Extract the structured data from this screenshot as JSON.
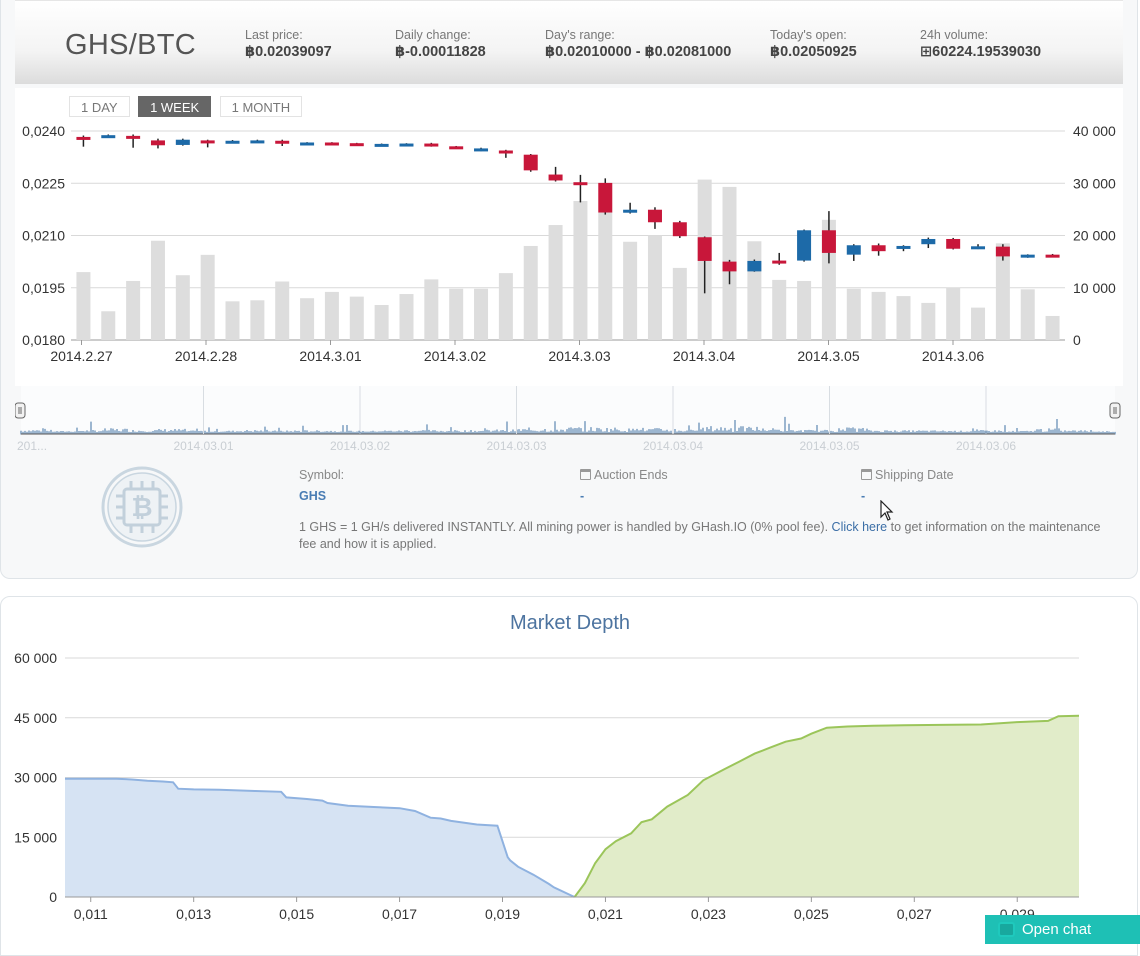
{
  "ticker": {
    "pair": "GHS/BTC",
    "last_price_label": "Last price:",
    "last_price": "฿0.02039097",
    "daily_change_label": "Daily change:",
    "daily_change": "฿-0.00011828",
    "days_range_label": "Day's range:",
    "days_range": "฿0.02010000 - ฿0.02081000",
    "todays_open_label": "Today's open:",
    "todays_open": "฿0.02050925",
    "volume_label": "24h volume:",
    "volume": "⊞60224.19539030"
  },
  "range_buttons": [
    {
      "label": "1 DAY",
      "active": false
    },
    {
      "label": "1 WEEK",
      "active": true
    },
    {
      "label": "1 MONTH",
      "active": false
    }
  ],
  "colors": {
    "up": "#1d6aa8",
    "down": "#c8173a",
    "volume_bar": "#dddddd",
    "bid_fill": "#d6e3f3",
    "bid_line": "#8fb2e0",
    "ask_fill": "#e1ecc9",
    "ask_line": "#9bc55a",
    "chat": "#1ec0b5",
    "link": "#3b6ea6"
  },
  "info": {
    "symbol_label": "Symbol:",
    "symbol": "GHS",
    "auction_label": "Auction Ends",
    "auction_value": "-",
    "shipping_label": "Shipping Date",
    "shipping_value": "-",
    "description_before": "1 GHS = 1 GH/s delivered INSTANTLY. All mining power is handled by GHash.IO (0% pool fee).",
    "description_link": "Click here",
    "description_after": "to get information on the maintenance fee and how it is applied."
  },
  "navigator": {
    "labels": [
      "201...",
      "2014.03.01",
      "2014.03.02",
      "2014.03.03",
      "2014.03.04",
      "2014.03.05",
      "2014.03.06"
    ]
  },
  "chat": {
    "label": "Open chat",
    "icon": "chat-bubble-icon"
  },
  "chart_data": [
    {
      "type": "candlestick",
      "title": "",
      "y_ticks_price": [
        "0,0180",
        "0,0195",
        "0,0210",
        "0,0225",
        "0,0240"
      ],
      "y_ticks_volume": [
        "0",
        "10 000",
        "20 000",
        "30 000",
        "40 000"
      ],
      "x_tick_labels": [
        "2014.2.27",
        "2014.2.28",
        "2014.3.01",
        "2014.3.02",
        "2014.3.03",
        "2014.3.04",
        "2014.3.05",
        "2014.3.06"
      ],
      "ylim_price": [
        0.018,
        0.024
      ],
      "ylim_volume": [
        0,
        40000
      ],
      "candles": [
        {
          "o": 0.02383,
          "c": 0.02378,
          "h": 0.02387,
          "l": 0.02355,
          "v": 13000
        },
        {
          "o": 0.02384,
          "c": 0.02388,
          "h": 0.0239,
          "l": 0.02382,
          "v": 5500
        },
        {
          "o": 0.02386,
          "c": 0.02379,
          "h": 0.0239,
          "l": 0.02352,
          "v": 11300
        },
        {
          "o": 0.02373,
          "c": 0.02359,
          "h": 0.02378,
          "l": 0.0235,
          "v": 19000
        },
        {
          "o": 0.0236,
          "c": 0.02375,
          "h": 0.02378,
          "l": 0.02358,
          "v": 12400
        },
        {
          "o": 0.02373,
          "c": 0.02366,
          "h": 0.02375,
          "l": 0.02353,
          "v": 16300
        },
        {
          "o": 0.02367,
          "c": 0.02372,
          "h": 0.02374,
          "l": 0.02366,
          "v": 7400
        },
        {
          "o": 0.02368,
          "c": 0.02373,
          "h": 0.02375,
          "l": 0.02366,
          "v": 7600
        },
        {
          "o": 0.02372,
          "c": 0.02366,
          "h": 0.02375,
          "l": 0.02357,
          "v": 11200
        },
        {
          "o": 0.02366,
          "c": 0.02367,
          "h": 0.02368,
          "l": 0.02365,
          "v": 8000
        },
        {
          "o": 0.02367,
          "c": 0.02365,
          "h": 0.02368,
          "l": 0.02364,
          "v": 9200
        },
        {
          "o": 0.02365,
          "c": 0.02362,
          "h": 0.02366,
          "l": 0.02361,
          "v": 8300
        },
        {
          "o": 0.02359,
          "c": 0.02363,
          "h": 0.02364,
          "l": 0.02357,
          "v": 6700
        },
        {
          "o": 0.02359,
          "c": 0.02364,
          "h": 0.02365,
          "l": 0.02358,
          "v": 8800
        },
        {
          "o": 0.02364,
          "c": 0.02357,
          "h": 0.02366,
          "l": 0.02355,
          "v": 11600
        },
        {
          "o": 0.02356,
          "c": 0.02352,
          "h": 0.02357,
          "l": 0.02351,
          "v": 9800
        },
        {
          "o": 0.02343,
          "c": 0.0235,
          "h": 0.02352,
          "l": 0.02342,
          "v": 9800
        },
        {
          "o": 0.02344,
          "c": 0.02337,
          "h": 0.02346,
          "l": 0.02323,
          "v": 12800
        },
        {
          "o": 0.02332,
          "c": 0.02287,
          "h": 0.02334,
          "l": 0.02283,
          "v": 18000
        },
        {
          "o": 0.02275,
          "c": 0.02258,
          "h": 0.02297,
          "l": 0.02255,
          "v": 22000
        },
        {
          "o": 0.02253,
          "c": 0.02251,
          "h": 0.02274,
          "l": 0.02195,
          "v": 26600
        },
        {
          "o": 0.02251,
          "c": 0.02166,
          "h": 0.02264,
          "l": 0.0216,
          "v": 24500
        },
        {
          "o": 0.02167,
          "c": 0.02174,
          "h": 0.02194,
          "l": 0.02163,
          "v": 18800
        },
        {
          "o": 0.02174,
          "c": 0.02138,
          "h": 0.02181,
          "l": 0.02119,
          "v": 20000
        },
        {
          "o": 0.02138,
          "c": 0.02098,
          "h": 0.02142,
          "l": 0.02093,
          "v": 13800
        },
        {
          "o": 0.02095,
          "c": 0.02027,
          "h": 0.02097,
          "l": 0.01934,
          "v": 30700
        },
        {
          "o": 0.02025,
          "c": 0.01997,
          "h": 0.0203,
          "l": 0.0196,
          "v": 29300
        },
        {
          "o": 0.01997,
          "c": 0.02027,
          "h": 0.02031,
          "l": 0.01996,
          "v": 18900
        },
        {
          "o": 0.02028,
          "c": 0.0202,
          "h": 0.0205,
          "l": 0.02016,
          "v": 11500
        },
        {
          "o": 0.02028,
          "c": 0.02115,
          "h": 0.02117,
          "l": 0.02025,
          "v": 11300
        },
        {
          "o": 0.02115,
          "c": 0.0205,
          "h": 0.0217,
          "l": 0.0202,
          "v": 23000
        },
        {
          "o": 0.02045,
          "c": 0.02072,
          "h": 0.02075,
          "l": 0.02027,
          "v": 9800
        },
        {
          "o": 0.02072,
          "c": 0.02055,
          "h": 0.02077,
          "l": 0.02042,
          "v": 9200
        },
        {
          "o": 0.02062,
          "c": 0.0207,
          "h": 0.02072,
          "l": 0.02055,
          "v": 8400
        },
        {
          "o": 0.02075,
          "c": 0.0209,
          "h": 0.02094,
          "l": 0.02064,
          "v": 7100
        },
        {
          "o": 0.0209,
          "c": 0.02062,
          "h": 0.02093,
          "l": 0.0206,
          "v": 10000
        },
        {
          "o": 0.02064,
          "c": 0.02069,
          "h": 0.02075,
          "l": 0.02061,
          "v": 6200
        },
        {
          "o": 0.02068,
          "c": 0.0204,
          "h": 0.02075,
          "l": 0.02028,
          "v": 18500
        },
        {
          "o": 0.02037,
          "c": 0.02045,
          "h": 0.02046,
          "l": 0.02036,
          "v": 9700
        },
        {
          "o": 0.02045,
          "c": 0.02039,
          "h": 0.02047,
          "l": 0.02037,
          "v": 4600
        }
      ]
    },
    {
      "type": "area",
      "title": "Market Depth",
      "x_tick_labels": [
        "0,011",
        "0,013",
        "0,015",
        "0,017",
        "0,019",
        "0,021",
        "0,023",
        "0,025",
        "0,027",
        "0,029"
      ],
      "y_tick_labels": [
        "0",
        "15 000",
        "30 000",
        "45 000",
        "60 000"
      ],
      "xlim": [
        0.0105,
        0.0302
      ],
      "ylim": [
        0,
        60000
      ],
      "series": [
        {
          "role": "bids",
          "x": [
            0.0105,
            0.0115,
            0.0118,
            0.0121,
            0.0124,
            0.0126,
            0.0127,
            0.013,
            0.0135,
            0.0142,
            0.0147,
            0.0148,
            0.0152,
            0.0155,
            0.0156,
            0.016,
            0.0165,
            0.017,
            0.0173,
            0.0176,
            0.0178,
            0.018,
            0.0185,
            0.0189,
            0.0191,
            0.01915,
            0.0193,
            0.0196,
            0.0199,
            0.02,
            0.0203,
            0.0204
          ],
          "y": [
            29700,
            29700,
            29500,
            29200,
            29000,
            28800,
            27200,
            27000,
            26900,
            26600,
            26400,
            25000,
            24600,
            24200,
            23600,
            22900,
            22600,
            22300,
            21600,
            19900,
            19700,
            19100,
            18200,
            17900,
            10000,
            9200,
            7600,
            5600,
            3300,
            2400,
            600,
            0
          ]
        },
        {
          "role": "asks",
          "x": [
            0.0204,
            0.0206,
            0.0208,
            0.021,
            0.0212,
            0.0215,
            0.0217,
            0.0219,
            0.0222,
            0.0226,
            0.0229,
            0.0233,
            0.0236,
            0.0239,
            0.0242,
            0.0245,
            0.0248,
            0.025,
            0.0253,
            0.0257,
            0.0262,
            0.0268,
            0.0275,
            0.0283,
            0.029,
            0.0296,
            0.0298,
            0.0302
          ],
          "y": [
            0,
            3500,
            8500,
            12000,
            14000,
            16000,
            18800,
            19500,
            22700,
            25600,
            29300,
            32000,
            34000,
            36000,
            37500,
            39000,
            39800,
            41000,
            42500,
            42800,
            43000,
            43100,
            43200,
            43300,
            43900,
            44200,
            45400,
            45500
          ]
        }
      ]
    }
  ]
}
